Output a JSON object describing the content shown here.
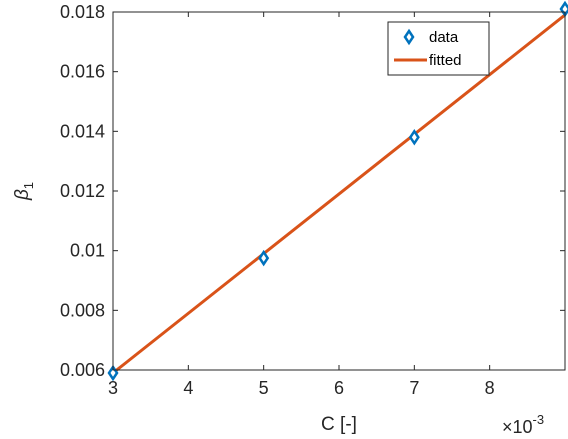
{
  "chart_data": {
    "type": "scatter",
    "xlabel": "C [-]",
    "ylabel_base": "β",
    "ylabel_sub": "1",
    "x_multiplier": {
      "prefix": "×10",
      "exponent": "-3"
    },
    "xlim": [
      3,
      9
    ],
    "ylim": [
      0.006,
      0.018
    ],
    "x_ticks": [
      3,
      4,
      5,
      6,
      7,
      8
    ],
    "x_tick_labels": [
      "3",
      "4",
      "5",
      "6",
      "7",
      "8"
    ],
    "y_ticks": [
      0.006,
      0.008,
      0.01,
      0.012,
      0.014,
      0.016,
      0.018
    ],
    "y_tick_labels": [
      "0.006",
      "0.008",
      "0.01",
      "0.012",
      "0.014",
      "0.016",
      "0.018"
    ],
    "grid": false,
    "legend_position": "top-right",
    "series": [
      {
        "name": "data",
        "kind": "marker",
        "marker": "diamond",
        "color": "#0072BD",
        "x": [
          3,
          5,
          7,
          9
        ],
        "y": [
          0.0059,
          0.00975,
          0.0138,
          0.0181
        ]
      },
      {
        "name": "fitted",
        "kind": "line",
        "color": "#D95319",
        "x": [
          3,
          9
        ],
        "y": [
          0.0059,
          0.0179
        ]
      }
    ]
  }
}
